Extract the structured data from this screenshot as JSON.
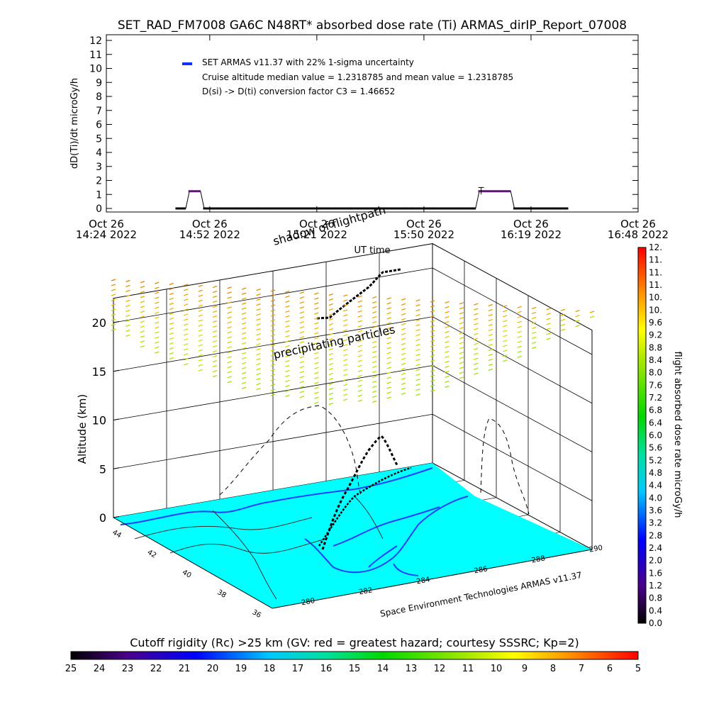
{
  "title": "SET_RAD_FM7008  GA6C N48RT* absorbed dose rate (Ti) ARMAS_dirIP_Report_07008",
  "chart_data": [
    {
      "type": "line",
      "ylabel": "dD(Ti)/dt microGy/h",
      "xlabel": "UT time",
      "ylim": [
        0,
        12
      ],
      "yticks": [
        "0",
        "1",
        "2",
        "3",
        "4",
        "5",
        "6",
        "7",
        "8",
        "9",
        "10",
        "11",
        "12"
      ],
      "xticks": [
        {
          "line1": "Oct 26",
          "line2": "14:24 2022"
        },
        {
          "line1": "Oct 26",
          "line2": "14:52 2022"
        },
        {
          "line1": "Oct 26",
          "line2": "15:21 2022"
        },
        {
          "line1": "Oct 26",
          "line2": "15:50 2022"
        },
        {
          "line1": "Oct 26",
          "line2": "16:19 2022"
        },
        {
          "line1": "Oct 26",
          "line2": "16:48 2022"
        }
      ],
      "x_minutes_from_start": [
        0,
        28,
        57,
        86,
        115,
        144
      ],
      "legend": [
        "SET ARMAS v11.37 with 22% 1-sigma uncertainty",
        "Cruise altitude median value = 1.2318785 and mean value = 1.2318785",
        "D(si) -> D(ti) conversion factor C3 = 1.46652"
      ],
      "series": [
        {
          "name": "SET ARMAS v11.37",
          "color": "#5a1a6e",
          "points_minutes_value": [
            [
              19,
              0.0
            ],
            [
              21.5,
              0.0
            ],
            [
              22.5,
              1.23
            ],
            [
              25.5,
              1.23
            ],
            [
              26.5,
              0.0
            ],
            [
              40,
              0.0
            ],
            [
              60,
              0.0
            ],
            [
              80,
              0.0
            ],
            [
              97,
              0.0
            ],
            [
              100,
              0.0
            ],
            [
              101,
              1.23
            ],
            [
              109.5,
              1.23
            ],
            [
              110.5,
              0.0
            ],
            [
              125,
              0.0
            ]
          ]
        }
      ],
      "error_bar_max": 1.5
    },
    {
      "type": "scatter",
      "zlabel": "Altitude (km)",
      "zticks": [
        "0",
        "5",
        "10",
        "15",
        "20"
      ],
      "lat_ticks": [
        "44",
        "42",
        "40",
        "38",
        "36"
      ],
      "lon_ticks": [
        "280",
        "282",
        "284",
        "286",
        "288",
        "290"
      ],
      "annotations": [
        "shadow of flightpath",
        "precipitating particles",
        "Space Environment Technologies ARMAS v11.37"
      ],
      "land_color": "#00ffff",
      "coast_color": "#2040ff",
      "flight_color": "#000000"
    },
    {
      "type": "heatmap",
      "name": "colorbar-dose",
      "label": "flight absorbed dose rate microGy/h",
      "ticks": [
        "0.0",
        "0.4",
        "0.8",
        "1.2",
        "1.6",
        "2.0",
        "2.4",
        "2.8",
        "3.2",
        "3.6",
        "4.0",
        "4.4",
        "4.8",
        "5.2",
        "5.6",
        "6.0",
        "6.4",
        "6.8",
        "7.2",
        "7.6",
        "8.0",
        "8.4",
        "8.8",
        "9.2",
        "9.6",
        "10.",
        "10.",
        "11.",
        "11.",
        "11.",
        "12."
      ]
    },
    {
      "type": "heatmap",
      "name": "colorbar-rigidity",
      "label": "Cutoff rigidity (Rc) >25 km (GV: red = greatest hazard; courtesy SSSRC; Kp=2)",
      "ticks": [
        "25",
        "24",
        "23",
        "22",
        "21",
        "20",
        "19",
        "18",
        "17",
        "16",
        "15",
        "14",
        "13",
        "12",
        "11",
        "10",
        "9",
        "8",
        "7",
        "6",
        "5"
      ]
    }
  ]
}
